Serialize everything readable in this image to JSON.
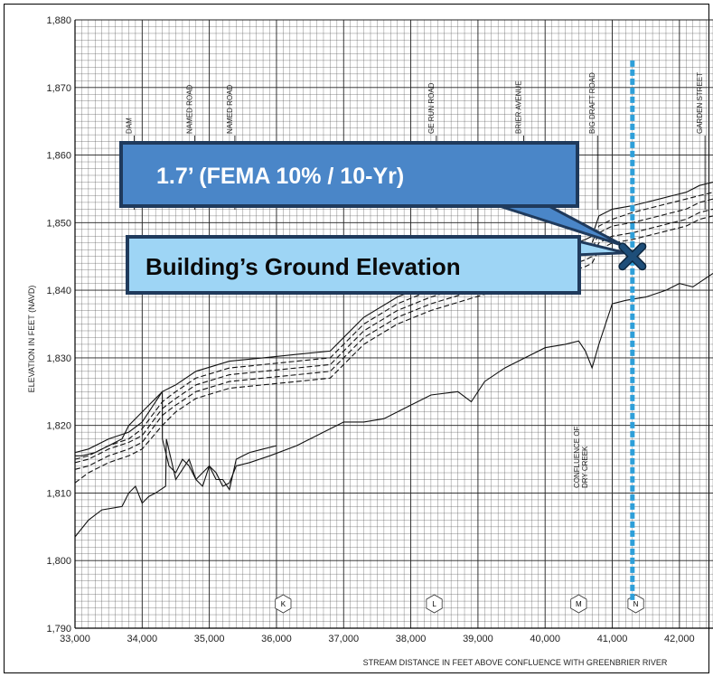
{
  "chart_data": {
    "type": "line",
    "xlabel": "STREAM DISTANCE IN FEET ABOVE CONFLUENCE WITH GREENBRIER RIVER",
    "ylabel": "ELEVATION IN FEET (NAVD)",
    "xlim": [
      33000,
      42500
    ],
    "ylim": [
      1790,
      1880
    ],
    "x_ticks": [
      33000,
      34000,
      35000,
      36000,
      37000,
      38000,
      39000,
      40000,
      41000,
      42000
    ],
    "x_tick_labels": [
      "33,000",
      "34,000",
      "35,000",
      "36,000",
      "37,000",
      "38,000",
      "39,000",
      "40,000",
      "41,000",
      "42,000"
    ],
    "y_ticks": [
      1790,
      1800,
      1810,
      1820,
      1830,
      1840,
      1850,
      1860,
      1870,
      1880
    ],
    "y_tick_labels": [
      "1,790",
      "1,800",
      "1,810",
      "1,820",
      "1,830",
      "1,840",
      "1,850",
      "1,860",
      "1,870",
      "1,880"
    ],
    "grid": true,
    "road_labels": [
      {
        "text": "DAM",
        "x": 33800
      },
      {
        "text": "NAMED ROAD",
        "x": 34700
      },
      {
        "text": "NAMED ROAD",
        "x": 35300
      },
      {
        "text": "GE RUN ROAD",
        "x": 38300
      },
      {
        "text": "BRIER AVENUE",
        "x": 39600
      },
      {
        "text": "BIG DRAFT ROAD",
        "x": 40700
      },
      {
        "text": "GARDEN STREET",
        "x": 42300
      }
    ],
    "confluence_label": [
      "CONFLUENCE OF",
      "DRY CREEK"
    ],
    "section_markers": [
      {
        "label": "K",
        "x": 36100
      },
      {
        "label": "L",
        "x": 38350
      },
      {
        "label": "M",
        "x": 40500
      },
      {
        "label": "N",
        "x": 41350
      }
    ],
    "series": [
      {
        "style": "solid",
        "x": [
          33000,
          33200,
          33500,
          33800,
          34000,
          34300,
          34500,
          34800,
          35300,
          35800,
          36300,
          36800,
          37300,
          37800,
          38300,
          38800,
          39300,
          39800,
          40300,
          40600,
          40700,
          40800,
          41000,
          41300,
          41500,
          41700,
          41900,
          42100,
          42300,
          42500
        ],
        "y": [
          1816,
          1816.5,
          1818,
          1819,
          1820.5,
          1825,
          1826,
          1828,
          1829.5,
          1830,
          1830.5,
          1831,
          1836,
          1839,
          1841,
          1842.5,
          1844,
          1845,
          1846.5,
          1847.5,
          1848,
          1851,
          1852,
          1852.5,
          1853,
          1853.5,
          1854,
          1854.5,
          1855.5,
          1856
        ]
      },
      {
        "style": "dashed",
        "x": [
          33000,
          33200,
          33500,
          33800,
          34000,
          34300,
          34500,
          34800,
          35300,
          35800,
          36300,
          36800,
          37300,
          37800,
          38300,
          38800,
          39300,
          39800,
          40300,
          40600,
          40700,
          40800,
          41000,
          41300,
          41500,
          41700,
          41900,
          42100,
          42300,
          42500
        ],
        "y": [
          1815,
          1815.5,
          1817,
          1818,
          1819.5,
          1823.5,
          1825,
          1827,
          1828.5,
          1829,
          1829.5,
          1830,
          1835,
          1838,
          1840,
          1841.5,
          1843,
          1844,
          1845.5,
          1846.5,
          1847,
          1849.5,
          1850.5,
          1851.5,
          1852,
          1852.5,
          1853,
          1853.5,
          1854,
          1854.5
        ]
      },
      {
        "style": "dashed",
        "x": [
          33000,
          33200,
          33500,
          33800,
          34000,
          34300,
          34500,
          34800,
          35300,
          35800,
          36300,
          36800,
          37300,
          37800,
          38300,
          38800,
          39300,
          39800,
          40300,
          40600,
          40700,
          40800,
          41000,
          41300,
          41500,
          41700,
          41900,
          42100,
          42300,
          42500
        ],
        "y": [
          1814.5,
          1815,
          1816.5,
          1817.5,
          1818.5,
          1822.5,
          1824,
          1826,
          1827.5,
          1828,
          1828.5,
          1829,
          1834,
          1837,
          1839,
          1840.5,
          1842,
          1843,
          1844.5,
          1845.5,
          1846,
          1848.5,
          1849.5,
          1850,
          1850.5,
          1851,
          1851.5,
          1852,
          1853,
          1853.5
        ]
      },
      {
        "style": "dashed",
        "x": [
          33000,
          33200,
          33500,
          33800,
          34000,
          34300,
          34500,
          34800,
          35300,
          35800,
          36300,
          36800,
          37300,
          37800,
          38300,
          38800,
          39300,
          39800,
          40300,
          40600,
          40700,
          40800,
          41000,
          41300,
          41500,
          41700,
          41900,
          42100,
          42300,
          42500
        ],
        "y": [
          1813.5,
          1814,
          1815.5,
          1816.5,
          1817.5,
          1821.5,
          1823,
          1825,
          1826.5,
          1827,
          1827.5,
          1828,
          1833,
          1836,
          1838,
          1839.5,
          1841,
          1842,
          1843.5,
          1844.5,
          1845,
          1847,
          1848,
          1848.5,
          1849,
          1849.5,
          1850,
          1850.5,
          1851.5,
          1852
        ]
      },
      {
        "style": "dashed",
        "x": [
          33000,
          33200,
          33500,
          33800,
          34000,
          34300,
          34500,
          34800,
          35300,
          35800,
          36300,
          36800,
          37300,
          37800,
          38300,
          38800,
          39300,
          39800,
          40300,
          40600,
          40700,
          40800,
          41000,
          41300,
          41500,
          41700,
          41900,
          42100,
          42300,
          42500
        ],
        "y": [
          1811.5,
          1813,
          1814.5,
          1815.5,
          1816.5,
          1820,
          1822,
          1824,
          1825.5,
          1826,
          1826.5,
          1827,
          1832,
          1835,
          1837,
          1838.5,
          1840,
          1841,
          1842.5,
          1843.5,
          1844,
          1846,
          1847,
          1847.5,
          1848,
          1848.5,
          1849,
          1849.5,
          1850.5,
          1851
        ]
      },
      {
        "style": "solid",
        "x": [
          33000,
          33100,
          33300,
          33500,
          33600,
          33700,
          33800,
          33900,
          34000,
          34100,
          34200,
          34300,
          34301,
          34400,
          34500,
          34600,
          34700,
          34800,
          34900,
          35000,
          35100,
          35200,
          35300,
          35400,
          35500,
          35600,
          35800,
          36000
        ],
        "y": [
          1815.5,
          1815.5,
          1816,
          1817,
          1817.5,
          1818,
          1820,
          1821,
          1822,
          1823,
          1824,
          1825,
          1818,
          1814,
          1813,
          1815,
          1814,
          1812,
          1811,
          1814,
          1812,
          1812,
          1810.5,
          1815,
          1815.5,
          1816,
          1816.5,
          1817
        ]
      },
      {
        "style": "solid",
        "x": [
          33000,
          33200,
          33400,
          33700,
          33800,
          33900,
          34000,
          34100,
          34200,
          34350,
          34360,
          34500,
          34700,
          34800,
          34900,
          35000,
          35100,
          35200,
          35300,
          35400,
          35600,
          35900,
          36300,
          36700,
          37000,
          37300,
          37600,
          37900,
          38300,
          38700,
          38900,
          39100,
          39400,
          39700,
          40000,
          40300,
          40500,
          40600,
          40700,
          40800,
          40900,
          41000,
          41200,
          41500,
          41800,
          42000,
          42200,
          42500
        ],
        "y": [
          1803.5,
          1806,
          1807.5,
          1808,
          1810,
          1811,
          1808.5,
          1809.5,
          1810,
          1811,
          1818,
          1812,
          1815,
          1812,
          1813,
          1814,
          1813,
          1811,
          1811.5,
          1814,
          1814.5,
          1815.5,
          1817,
          1819,
          1820.5,
          1820.5,
          1821,
          1822.5,
          1824.5,
          1825,
          1823.5,
          1826.5,
          1828.5,
          1830,
          1831.5,
          1832,
          1832.5,
          1831,
          1828.5,
          1832,
          1835,
          1838,
          1838.5,
          1839,
          1840,
          1841,
          1840.5,
          1842.5
        ]
      }
    ],
    "vertical_line": {
      "x": 41300,
      "y_from": 1794,
      "y_to": 1874,
      "color": "#2E9FD9"
    },
    "building_marker": {
      "x": 41300,
      "y": 1845,
      "color": "#1E4E79"
    }
  },
  "callouts": {
    "top": "1.7’ (FEMA 10% / 10-Yr)",
    "bottom": "Building’s Ground Elevation"
  },
  "colors": {
    "callout_fill_top": "#4A86C8",
    "callout_fill_bottom": "#9ED5F5",
    "callout_border": "#1F3A5C",
    "line_blue": "#2E9FD9",
    "marker": "#1E4E79"
  }
}
